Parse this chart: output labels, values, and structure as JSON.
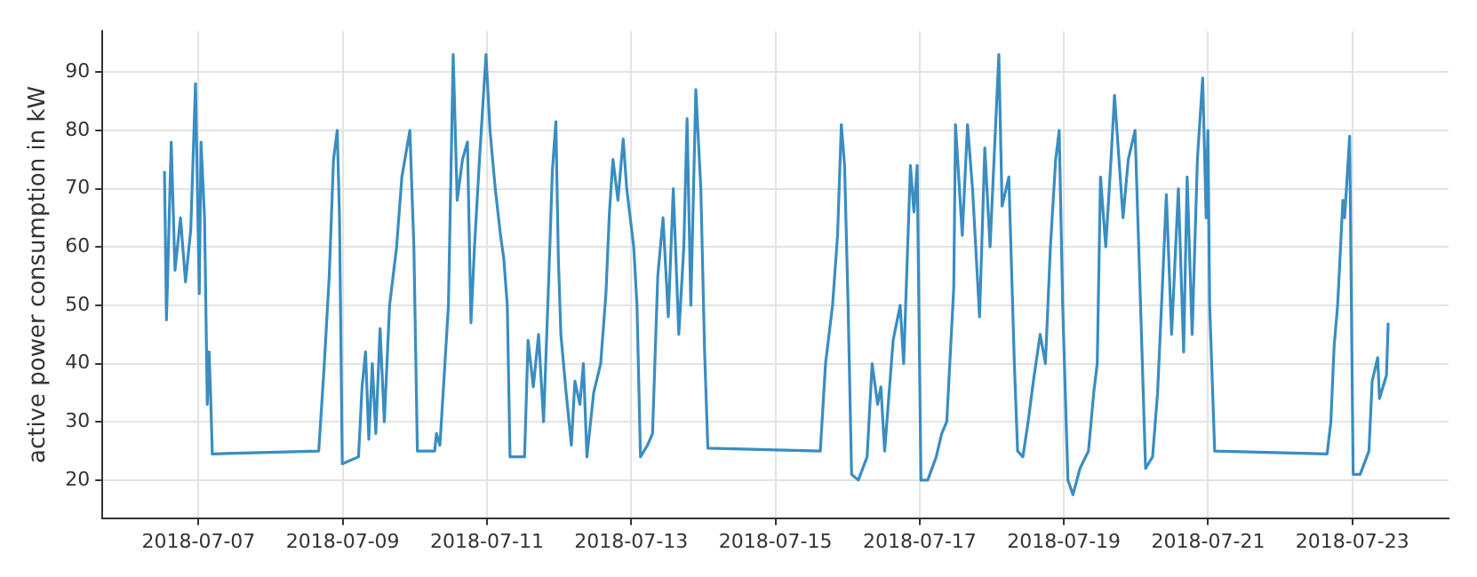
{
  "chart_data": {
    "type": "line",
    "ylabel": "active power consumption in kW",
    "x": [
      "2018-07-06T12:40",
      "2018-07-06T13:20",
      "2018-07-06T14:55",
      "2018-07-06T16:10",
      "2018-07-06T18:00",
      "2018-07-06T19:40",
      "2018-07-06T21:25",
      "2018-07-06T23:00",
      "2018-07-07T00:15",
      "2018-07-07T00:50",
      "2018-07-07T02:00",
      "2018-07-07T02:55",
      "2018-07-07T03:30",
      "2018-07-07T04:00",
      "2018-07-07T04:35",
      "2018-07-08T16:00",
      "2018-07-08T17:45",
      "2018-07-08T19:30",
      "2018-07-08T20:55",
      "2018-07-08T22:10",
      "2018-07-08T22:55",
      "2018-07-08T23:50",
      "2018-07-09T05:15",
      "2018-07-09T06:25",
      "2018-07-09T07:35",
      "2018-07-09T08:40",
      "2018-07-09T09:50",
      "2018-07-09T11:00",
      "2018-07-09T12:25",
      "2018-07-09T13:50",
      "2018-07-09T15:35",
      "2018-07-09T17:55",
      "2018-07-09T19:40",
      "2018-07-09T22:20",
      "2018-07-09T23:40",
      "2018-07-10T00:50",
      "2018-07-10T06:35",
      "2018-07-10T07:10",
      "2018-07-10T08:20",
      "2018-07-10T10:00",
      "2018-07-10T11:10",
      "2018-07-10T12:45",
      "2018-07-10T14:05",
      "2018-07-10T15:50",
      "2018-07-10T17:30",
      "2018-07-10T18:40",
      "2018-07-10T19:50",
      "2018-07-10T21:30",
      "2018-07-10T23:40",
      "2018-07-11T01:00",
      "2018-07-11T02:45",
      "2018-07-11T04:30",
      "2018-07-11T05:35",
      "2018-07-11T06:45",
      "2018-07-11T07:40",
      "2018-07-11T12:30",
      "2018-07-11T13:40",
      "2018-07-11T15:25",
      "2018-07-11T17:10",
      "2018-07-11T18:50",
      "2018-07-11T20:35",
      "2018-07-11T21:45",
      "2018-07-11T22:55",
      "2018-07-11T23:45",
      "2018-07-12T00:35",
      "2018-07-12T02:20",
      "2018-07-12T04:05",
      "2018-07-12T05:15",
      "2018-07-12T06:55",
      "2018-07-12T08:05",
      "2018-07-12T09:15",
      "2018-07-12T11:30",
      "2018-07-12T13:50",
      "2018-07-12T15:35",
      "2018-07-12T16:45",
      "2018-07-12T17:55",
      "2018-07-12T19:35",
      "2018-07-12T21:20",
      "2018-07-12T22:30",
      "2018-07-13T00:50",
      "2018-07-13T01:55",
      "2018-07-13T03:05",
      "2018-07-13T05:25",
      "2018-07-13T07:05",
      "2018-07-13T08:50",
      "2018-07-13T10:35",
      "2018-07-13T12:20",
      "2018-07-13T14:00",
      "2018-07-13T15:50",
      "2018-07-13T17:30",
      "2018-07-13T18:35",
      "2018-07-13T19:50",
      "2018-07-13T21:30",
      "2018-07-13T23:10",
      "2018-07-14T00:25",
      "2018-07-14T01:30",
      "2018-07-15T14:55",
      "2018-07-15T16:40",
      "2018-07-15T19:00",
      "2018-07-15T20:40",
      "2018-07-15T21:55",
      "2018-07-15T23:00",
      "2018-07-16T00:10",
      "2018-07-16T01:20",
      "2018-07-16T03:35",
      "2018-07-16T06:30",
      "2018-07-16T08:10",
      "2018-07-16T10:00",
      "2018-07-16T11:05",
      "2018-07-16T12:20",
      "2018-07-16T15:10",
      "2018-07-16T17:30",
      "2018-07-16T18:40",
      "2018-07-16T20:55",
      "2018-07-16T22:05",
      "2018-07-16T23:10",
      "2018-07-17T00:25",
      "2018-07-17T02:40",
      "2018-07-17T05:30",
      "2018-07-17T07:20",
      "2018-07-17T09:00",
      "2018-07-17T11:20",
      "2018-07-17T11:55",
      "2018-07-17T14:10",
      "2018-07-17T15:55",
      "2018-07-17T17:35",
      "2018-07-17T19:55",
      "2018-07-17T21:40",
      "2018-07-17T23:25",
      "2018-07-18T02:20",
      "2018-07-18T03:25",
      "2018-07-18T05:40",
      "2018-07-18T07:30",
      "2018-07-18T08:35",
      "2018-07-18T10:20",
      "2018-07-18T12:05",
      "2018-07-18T13:50",
      "2018-07-18T16:05",
      "2018-07-18T17:50",
      "2018-07-18T19:30",
      "2018-07-18T21:15",
      "2018-07-18T22:25",
      "2018-07-18T23:35",
      "2018-07-19T01:20",
      "2018-07-19T03:00",
      "2018-07-19T05:20",
      "2018-07-19T08:10",
      "2018-07-19T09:55",
      "2018-07-19T11:05",
      "2018-07-19T12:10",
      "2018-07-19T13:55",
      "2018-07-19T15:40",
      "2018-07-19T16:50",
      "2018-07-19T19:40",
      "2018-07-19T21:25",
      "2018-07-19T23:40",
      "2018-07-20T01:30",
      "2018-07-20T03:10",
      "2018-07-20T05:30",
      "2018-07-20T07:10",
      "2018-07-20T08:55",
      "2018-07-20T10:05",
      "2018-07-20T11:50",
      "2018-07-20T14:05",
      "2018-07-20T15:50",
      "2018-07-20T17:00",
      "2018-07-20T18:40",
      "2018-07-20T20:25",
      "2018-07-20T22:10",
      "2018-07-20T23:20",
      "2018-07-20T23:55",
      "2018-07-21T00:30",
      "2018-07-21T02:10",
      "2018-07-22T15:35",
      "2018-07-22T16:50",
      "2018-07-22T17:55",
      "2018-07-22T19:05",
      "2018-07-22T20:50",
      "2018-07-22T21:25",
      "2018-07-22T23:05",
      "2018-07-23T00:15",
      "2018-07-23T02:35",
      "2018-07-23T05:30",
      "2018-07-23T06:35",
      "2018-07-23T08:25",
      "2018-07-23T09:00",
      "2018-07-23T11:20",
      "2018-07-23T11:55"
    ],
    "series": [
      {
        "color": "#3a8dc1",
        "values": [
          73,
          47.5,
          78,
          56,
          65,
          54,
          63,
          88,
          52,
          78,
          65,
          33,
          42,
          35,
          24.5,
          25,
          39,
          55,
          75,
          80,
          65,
          22.8,
          24,
          36,
          42,
          27,
          40,
          28,
          46,
          30,
          50,
          60,
          72,
          80,
          60,
          25,
          25,
          28,
          26,
          40,
          50,
          93,
          68,
          75,
          78,
          47,
          60,
          75,
          93,
          80,
          70,
          62,
          58,
          50,
          24,
          24,
          44,
          36,
          45,
          30,
          55,
          73,
          81.5,
          58,
          45,
          35,
          26,
          37,
          33,
          40,
          24,
          35,
          40,
          52,
          66,
          75,
          68,
          78.5,
          70,
          60,
          50,
          24,
          26,
          28,
          55,
          65,
          48,
          70,
          45,
          60,
          82,
          50,
          87,
          70,
          42,
          25.5,
          25,
          40,
          50,
          62,
          81,
          74,
          50,
          21,
          20,
          24,
          40,
          33,
          36,
          25,
          44,
          50,
          40,
          74,
          66,
          74,
          20,
          20,
          24,
          28,
          30,
          53,
          81,
          62,
          81,
          70,
          48,
          77,
          60,
          93,
          67,
          72,
          40,
          25,
          24,
          30,
          37,
          45,
          40,
          60,
          75,
          80,
          50,
          20,
          17.5,
          22,
          25,
          35,
          40,
          72,
          60,
          75,
          86,
          65,
          75,
          80,
          50,
          22,
          24,
          35,
          55,
          69,
          45,
          70,
          42,
          72,
          45,
          75,
          89,
          65,
          80,
          50,
          25,
          24.5,
          30,
          43,
          50,
          68,
          65,
          79,
          21,
          21,
          25,
          37,
          41,
          34,
          38,
          47
        ]
      }
    ],
    "xlim": [
      "2018-07-05T16:00",
      "2018-07-24T08:00"
    ],
    "xticks": [
      "2018-07-07",
      "2018-07-09",
      "2018-07-11",
      "2018-07-13",
      "2018-07-15",
      "2018-07-17",
      "2018-07-19",
      "2018-07-21",
      "2018-07-23"
    ],
    "ylim": [
      13.5,
      97
    ],
    "yticks": [
      20,
      30,
      40,
      50,
      60,
      70,
      80,
      90
    ],
    "grid": true,
    "marker": "none",
    "line_style": "solid",
    "legend": false
  }
}
